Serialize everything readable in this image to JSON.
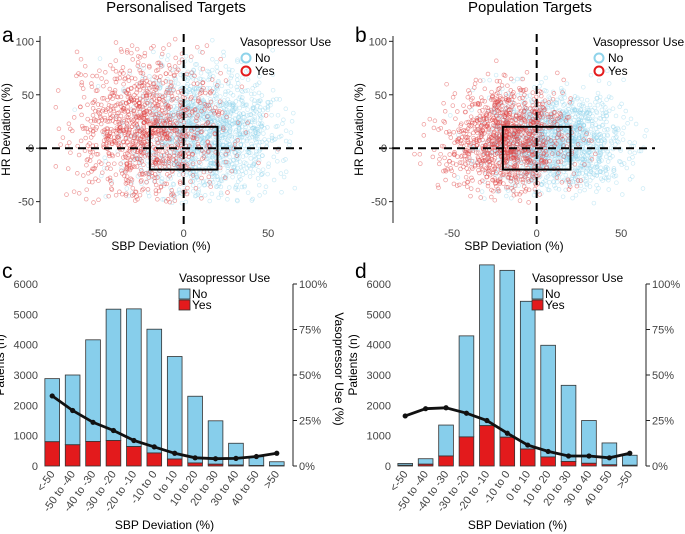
{
  "colors": {
    "no": "#87ceeb",
    "yes": "#e31a1c",
    "line": "#111111",
    "scatter_no": "#8fd3ea",
    "scatter_yes": "#e04848"
  },
  "chart_data": [
    {
      "panel": "a",
      "type": "scatter",
      "title": "Personalised Targets",
      "xlabel": "SBP Deviation (%)",
      "ylabel": "HR Deviation (%)",
      "xlim": [
        -85,
        70
      ],
      "ylim": [
        -70,
        105
      ],
      "xticks": [
        "-50",
        "0",
        "50"
      ],
      "xtick_values": [
        -50,
        0,
        50
      ],
      "yticks": [
        "100",
        "50",
        "0",
        "-50"
      ],
      "ytick_values": [
        100,
        50,
        0,
        -50
      ],
      "legend_title": "Vasopressor Use",
      "legend": [
        "No",
        "Yes"
      ],
      "box": {
        "x": [
          -20,
          20
        ],
        "y": [
          -20,
          20
        ]
      },
      "reference_lines": {
        "x": 0,
        "y": 0
      },
      "clouds": [
        {
          "name": "No",
          "center_x": 12,
          "center_y": 15,
          "spread_x": 22,
          "spread_y": 30
        },
        {
          "name": "Yes",
          "center_x": -22,
          "center_y": 18,
          "spread_x": 22,
          "spread_y": 32
        }
      ]
    },
    {
      "panel": "b",
      "type": "scatter",
      "title": "Population Targets",
      "xlabel": "SBP Deviation (%)",
      "ylabel": "HR Deviation (%)",
      "xlim": [
        -85,
        70
      ],
      "ylim": [
        -70,
        105
      ],
      "xticks": [
        "-50",
        "0",
        "50"
      ],
      "xtick_values": [
        -50,
        0,
        50
      ],
      "yticks": [
        "100",
        "50",
        "0",
        "-50"
      ],
      "ytick_values": [
        100,
        50,
        0,
        -50
      ],
      "legend_title": "Vasopressor Use",
      "legend": [
        "No",
        "Yes"
      ],
      "box": {
        "x": [
          -20,
          20
        ],
        "y": [
          -20,
          20
        ]
      },
      "reference_lines": {
        "x": 0,
        "y": 0
      },
      "clouds": [
        {
          "name": "No",
          "center_x": 10,
          "center_y": 5,
          "spread_x": 20,
          "spread_y": 22
        },
        {
          "name": "Yes",
          "center_x": -18,
          "center_y": 8,
          "spread_x": 18,
          "spread_y": 25
        }
      ]
    },
    {
      "panel": "c",
      "type": "bar",
      "xlabel": "SBP Deviation (%)",
      "ylabel": "Patients (n)",
      "ylabel_right": "Vasopressor Use (%)",
      "categories": [
        "<-50",
        "-50 to -40",
        "-40 to -30",
        "-30 to -20",
        "-20 to -10",
        "-10 to 0",
        "0 to 10",
        "10 to 20",
        "20 to 30",
        "30 to 40",
        "40 to 50",
        ">50"
      ],
      "series": [
        {
          "name": "No",
          "values": [
            2080,
            2300,
            3350,
            4330,
            4540,
            4080,
            3380,
            2200,
            1430,
            720,
            290,
            130
          ]
        },
        {
          "name": "Yes",
          "values": [
            800,
            700,
            810,
            840,
            640,
            430,
            230,
            100,
            60,
            30,
            15,
            10
          ]
        }
      ],
      "line": {
        "name": "Vasopressor Use",
        "values": [
          38.5,
          30.5,
          24,
          19.5,
          14,
          10.5,
          7,
          4.5,
          4,
          4.2,
          5.2,
          7
        ]
      },
      "ylim": [
        0,
        6000
      ],
      "yticks": [
        "0",
        "1000",
        "2000",
        "3000",
        "4000",
        "5000",
        "6000"
      ],
      "ytick_values": [
        0,
        1000,
        2000,
        3000,
        4000,
        5000,
        6000
      ],
      "ylim_right": [
        0,
        100
      ],
      "yticks_right": [
        "0%",
        "25%",
        "50%",
        "75%",
        "100%"
      ],
      "ytick_values_right": [
        0,
        25,
        50,
        75,
        100
      ],
      "legend_title": "Vasopressor Use",
      "legend": [
        "No",
        "Yes"
      ]
    },
    {
      "panel": "d",
      "type": "bar",
      "xlabel": "SBP Deviation (%)",
      "ylabel": "Patients (n)",
      "ylabel_right": "Vasopressor Use (%)",
      "categories": [
        "<-50",
        "-50 to -40",
        "-40 to -30",
        "-30 to -20",
        "-20 to -10",
        "-10 to 0",
        "0 to 10",
        "10 to 20",
        "20 to 30",
        "30 to 40",
        "40 to 50",
        ">50"
      ],
      "series": [
        {
          "name": "No",
          "values": [
            60,
            180,
            1020,
            3330,
            5300,
            5500,
            4870,
            3680,
            2510,
            1410,
            720,
            330
          ]
        },
        {
          "name": "Yes",
          "values": [
            25,
            60,
            330,
            960,
            1330,
            950,
            560,
            300,
            150,
            90,
            40,
            25
          ]
        }
      ],
      "line": {
        "name": "Vasopressor Use",
        "values": [
          27.5,
          31.5,
          32,
          29,
          25,
          18,
          11.5,
          8,
          5.5,
          5.5,
          4.5,
          7
        ]
      },
      "ylim": [
        0,
        6000
      ],
      "yticks": [
        "0",
        "1000",
        "2000",
        "3000",
        "4000",
        "5000",
        "6000"
      ],
      "ytick_values": [
        0,
        1000,
        2000,
        3000,
        4000,
        5000,
        6000
      ],
      "ylim_right": [
        0,
        100
      ],
      "yticks_right": [
        "0%",
        "25%",
        "50%",
        "75%",
        "100%"
      ],
      "ytick_values_right": [
        0,
        25,
        50,
        75,
        100
      ],
      "legend_title": "Vasopressor Use",
      "legend": [
        "No",
        "Yes"
      ]
    }
  ]
}
